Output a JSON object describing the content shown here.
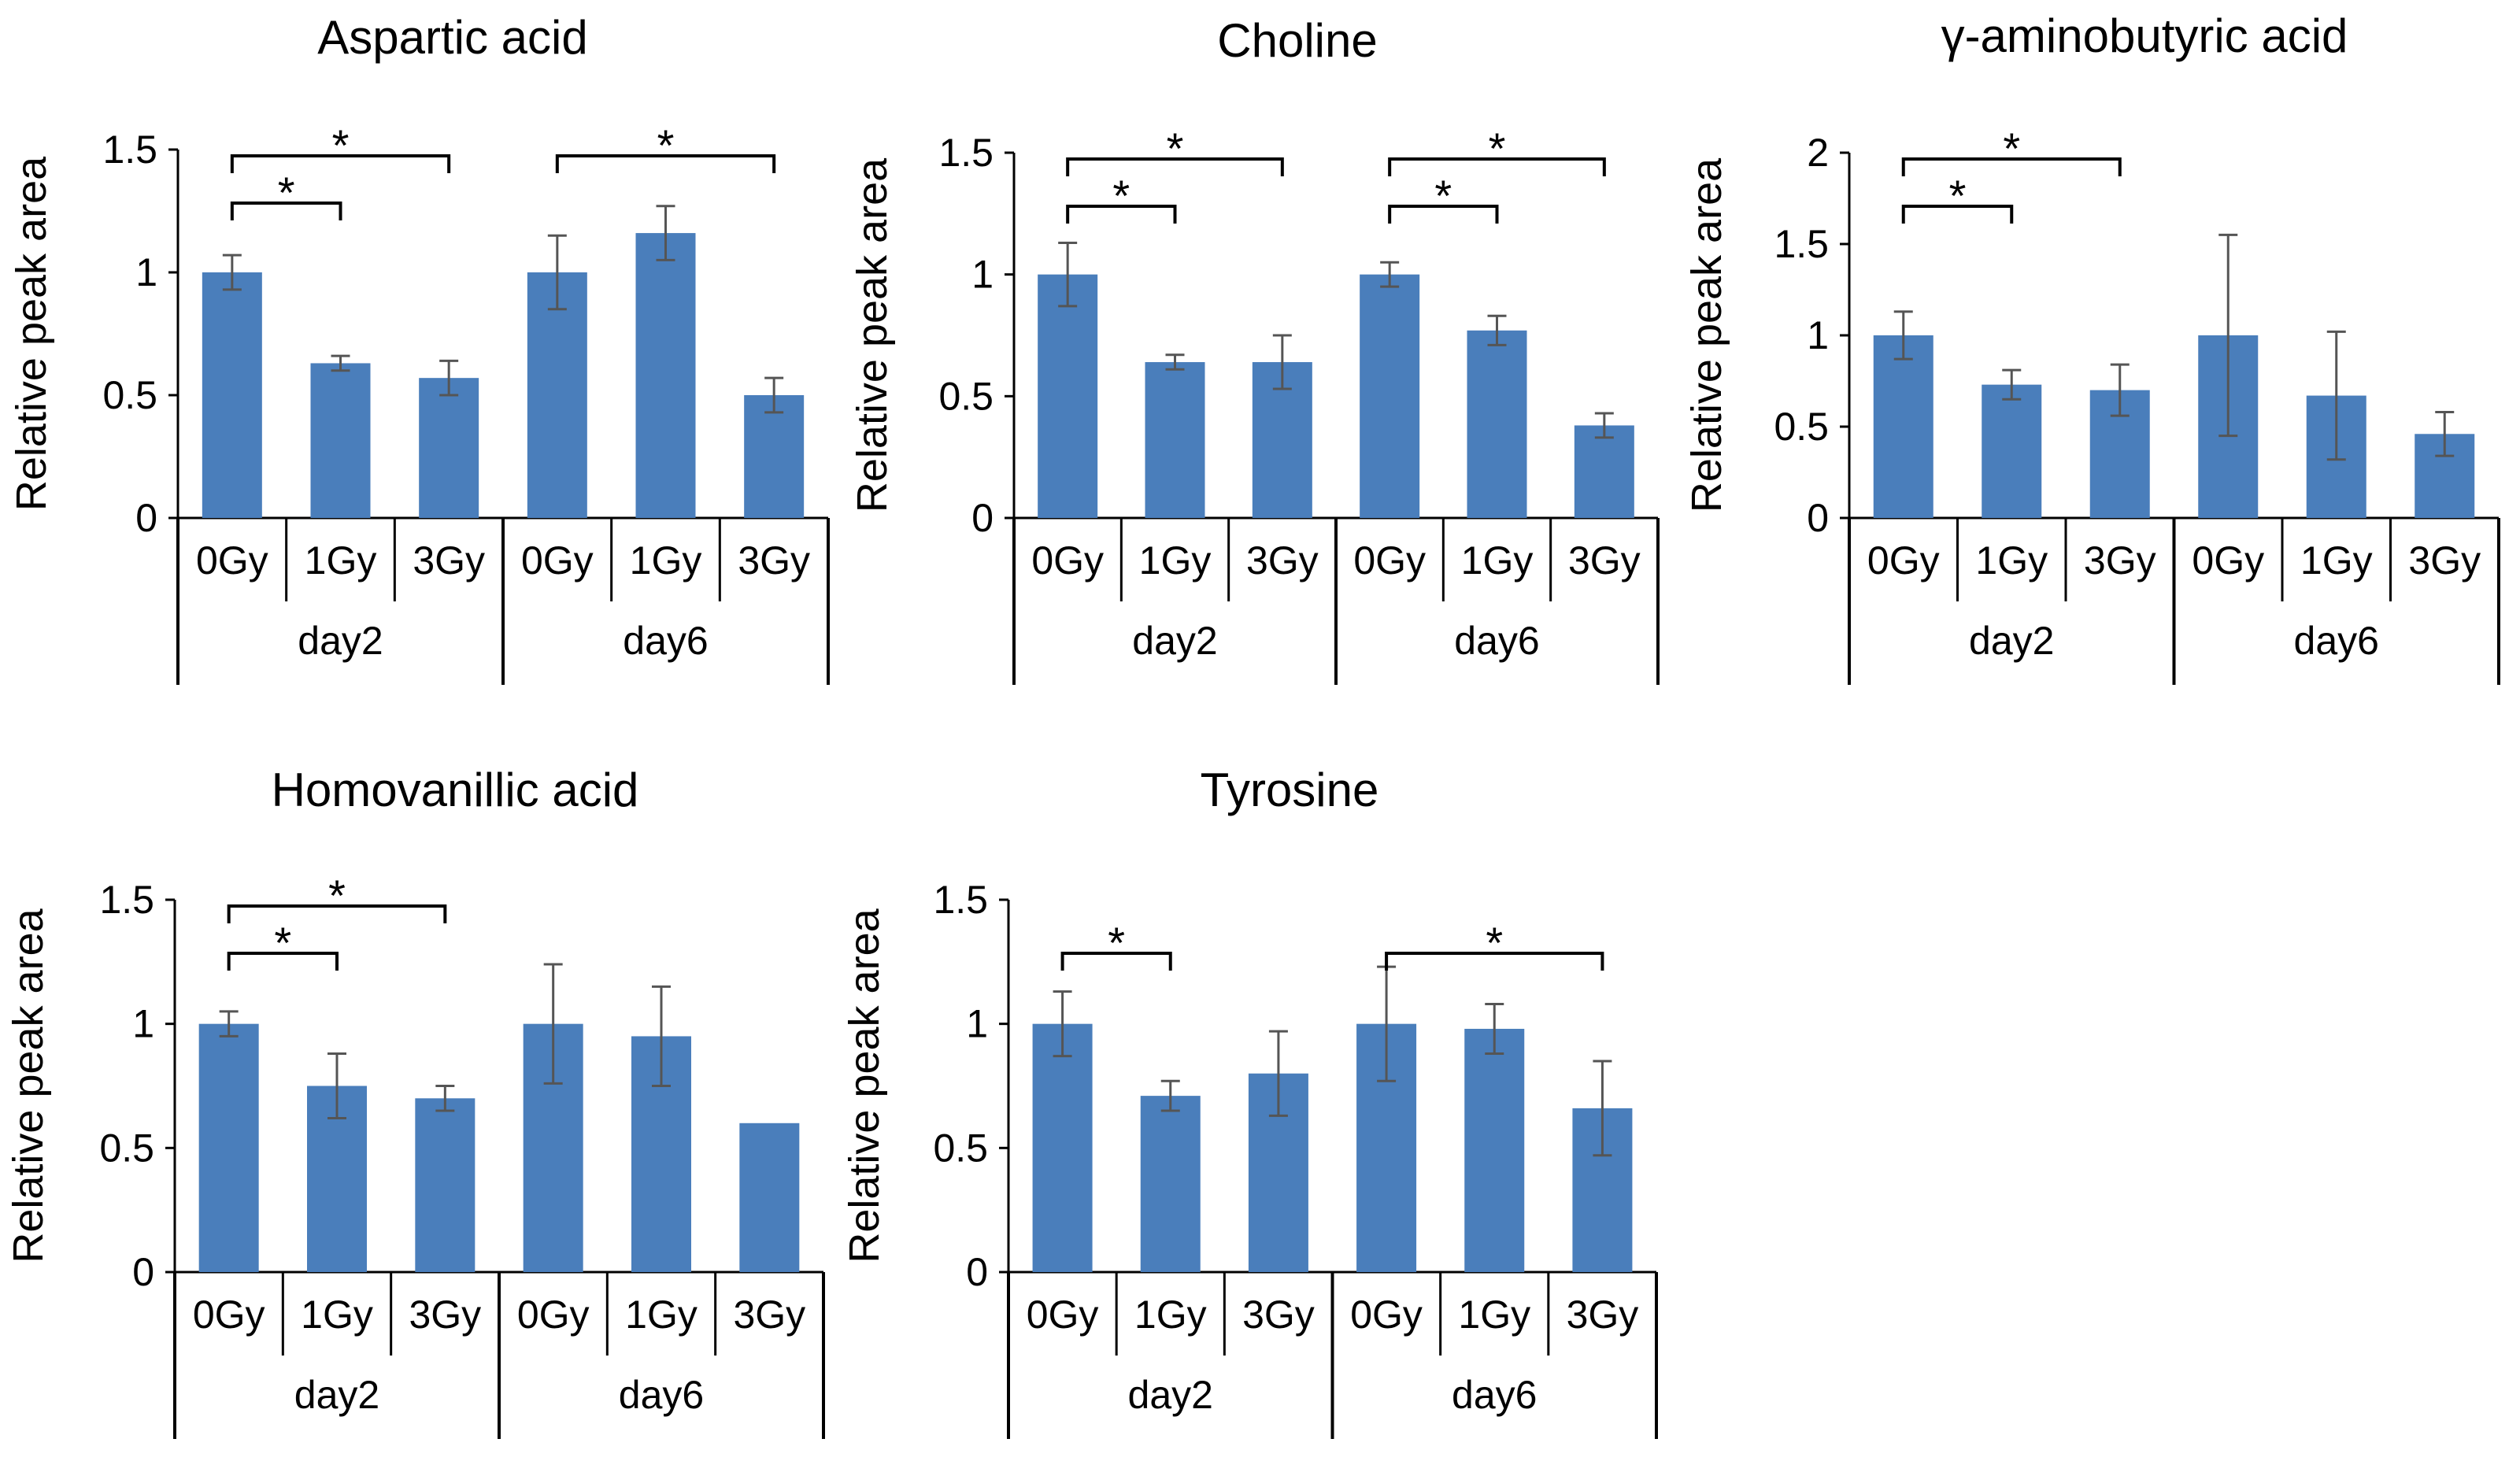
{
  "colors": {
    "bar": "#4a7ebb",
    "error_bar": "#555555",
    "axis": "#000000"
  },
  "chart_data": [
    {
      "type": "bar",
      "title": "Aspartic acid",
      "ylabel": "Relative peak area",
      "xlabel": "",
      "ylim": [
        0,
        1.5
      ],
      "yticks": [
        0,
        0.5,
        1,
        1.5
      ],
      "ytick_labels": [
        "0",
        "0.5",
        "1",
        "1.5"
      ],
      "categories": [
        "0Gy",
        "1Gy",
        "3Gy",
        "0Gy",
        "1Gy",
        "3Gy"
      ],
      "groups": [
        {
          "label": "day2",
          "size": 3
        },
        {
          "label": "day6",
          "size": 3
        }
      ],
      "values": [
        1.0,
        0.63,
        0.57,
        1.0,
        1.16,
        0.5
      ],
      "errors": [
        0.07,
        0.03,
        0.07,
        0.15,
        0.11,
        0.07
      ],
      "significance": [
        {
          "from": 0,
          "to": 1,
          "label": "*",
          "level": 1
        },
        {
          "from": 0,
          "to": 2,
          "label": "*",
          "level": 2
        },
        {
          "from": 3,
          "to": 5,
          "label": "*",
          "level": 2
        }
      ]
    },
    {
      "type": "bar",
      "title": "Choline",
      "ylabel": "Relative peak area",
      "xlabel": "",
      "ylim": [
        0,
        1.5
      ],
      "yticks": [
        0,
        0.5,
        1,
        1.5
      ],
      "ytick_labels": [
        "0",
        "0.5",
        "1",
        "1.5"
      ],
      "categories": [
        "0Gy",
        "1Gy",
        "3Gy",
        "0Gy",
        "1Gy",
        "3Gy"
      ],
      "groups": [
        {
          "label": "day2",
          "size": 3
        },
        {
          "label": "day6",
          "size": 3
        }
      ],
      "values": [
        1.0,
        0.64,
        0.64,
        1.0,
        0.77,
        0.38
      ],
      "errors": [
        0.13,
        0.03,
        0.11,
        0.05,
        0.06,
        0.05
      ],
      "significance": [
        {
          "from": 0,
          "to": 1,
          "label": "*",
          "level": 1
        },
        {
          "from": 0,
          "to": 2,
          "label": "*",
          "level": 2
        },
        {
          "from": 3,
          "to": 4,
          "label": "*",
          "level": 1
        },
        {
          "from": 3,
          "to": 5,
          "label": "*",
          "level": 2
        }
      ]
    },
    {
      "type": "bar",
      "title": "γ-aminobutyric acid",
      "ylabel": "Relative peak area",
      "xlabel": "",
      "ylim": [
        0,
        2
      ],
      "yticks": [
        0,
        0.5,
        1,
        1.5,
        2
      ],
      "ytick_labels": [
        "0",
        "0.5",
        "1",
        "1.5",
        "2"
      ],
      "categories": [
        "0Gy",
        "1Gy",
        "3Gy",
        "0Gy",
        "1Gy",
        "3Gy"
      ],
      "groups": [
        {
          "label": "day2",
          "size": 3
        },
        {
          "label": "day6",
          "size": 3
        }
      ],
      "values": [
        1.0,
        0.73,
        0.7,
        1.0,
        0.67,
        0.46
      ],
      "errors": [
        0.13,
        0.08,
        0.14,
        0.55,
        0.35,
        0.12
      ],
      "significance": [
        {
          "from": 0,
          "to": 1,
          "label": "*",
          "level": 1
        },
        {
          "from": 0,
          "to": 2,
          "label": "*",
          "level": 2
        }
      ]
    },
    {
      "type": "bar",
      "title": "Homovanillic acid",
      "ylabel": "Relative peak area",
      "xlabel": "",
      "ylim": [
        0,
        1.5
      ],
      "yticks": [
        0,
        0.5,
        1,
        1.5
      ],
      "ytick_labels": [
        "0",
        "0.5",
        "1",
        "1.5"
      ],
      "categories": [
        "0Gy",
        "1Gy",
        "3Gy",
        "0Gy",
        "1Gy",
        "3Gy"
      ],
      "groups": [
        {
          "label": "day2",
          "size": 3
        },
        {
          "label": "day6",
          "size": 3
        }
      ],
      "values": [
        1.0,
        0.75,
        0.7,
        1.0,
        0.95,
        0.6
      ],
      "errors": [
        0.05,
        0.13,
        0.05,
        0.24,
        0.2,
        0.0
      ],
      "significance": [
        {
          "from": 0,
          "to": 1,
          "label": "*",
          "level": 1
        },
        {
          "from": 0,
          "to": 2,
          "label": "*",
          "level": 2
        }
      ]
    },
    {
      "type": "bar",
      "title": "Tyrosine",
      "ylabel": "Relative peak area",
      "xlabel": "",
      "ylim": [
        0,
        1.5
      ],
      "yticks": [
        0,
        0.5,
        1,
        1.5
      ],
      "ytick_labels": [
        "0",
        "0.5",
        "1",
        "1.5"
      ],
      "categories": [
        "0Gy",
        "1Gy",
        "3Gy",
        "0Gy",
        "1Gy",
        "3Gy"
      ],
      "groups": [
        {
          "label": "day2",
          "size": 3
        },
        {
          "label": "day6",
          "size": 3
        }
      ],
      "values": [
        1.0,
        0.71,
        0.8,
        1.0,
        0.98,
        0.66
      ],
      "errors": [
        0.13,
        0.06,
        0.17,
        0.23,
        0.1,
        0.19
      ],
      "significance": [
        {
          "from": 0,
          "to": 1,
          "label": "*",
          "level": 1
        },
        {
          "from": 3,
          "to": 5,
          "label": "*",
          "level": 1
        }
      ]
    }
  ]
}
